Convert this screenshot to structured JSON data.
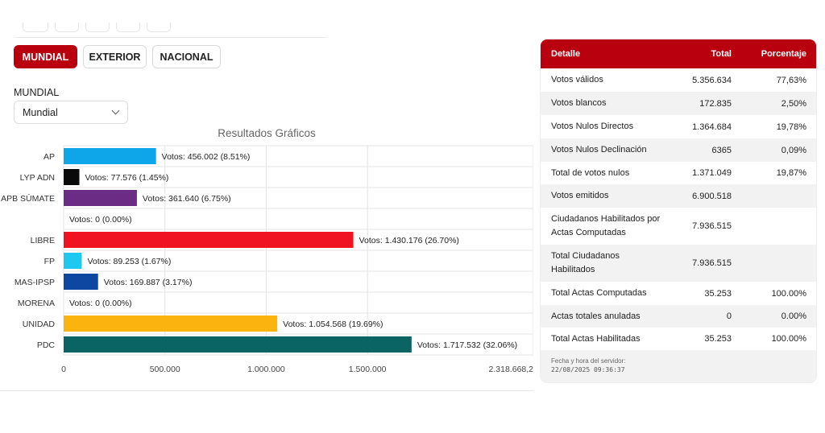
{
  "tabs": [
    {
      "label": "MUNDIAL",
      "active": true
    },
    {
      "label": "EXTERIOR",
      "active": false
    },
    {
      "label": "NACIONAL",
      "active": false
    }
  ],
  "filter": {
    "label": "MUNDIAL",
    "selected": "Mundial"
  },
  "chart_data": {
    "type": "bar",
    "orientation": "horizontal",
    "title": "Resultados Gráficos",
    "categories": [
      "AP",
      "LYP ADN",
      "APB SÚMATE",
      "",
      "LIBRE",
      "FP",
      "MAS-IPSP",
      "MORENA",
      "UNIDAD",
      "PDC"
    ],
    "values": [
      456002,
      77576,
      361640,
      0,
      1430176,
      89253,
      169887,
      0,
      1054568,
      1717532
    ],
    "labels": [
      "Votos: 456.002 (8.51%)",
      "Votos: 77.576 (1.45%)",
      "Votos: 361.640 (6.75%)",
      "Votos: 0 (0.00%)",
      "Votos: 1.430.176 (26.70%)",
      "Votos: 89.253 (1.67%)",
      "Votos: 169.887 (3.17%)",
      "Votos: 0 (0.00%)",
      "Votos: 1.054.568 (19.69%)",
      "Votos: 1.717.532 (32.06%)"
    ],
    "colors": [
      "#0ea5e9",
      "#0a0a0a",
      "#6b2c86",
      "#cccccc",
      "#f01422",
      "#1ec8ef",
      "#0d47a1",
      "#cccccc",
      "#fbb40f",
      "#0b6464"
    ],
    "xlim": [
      0,
      2318668.2
    ],
    "xticks": [
      0,
      500000,
      1000000,
      1500000,
      2318668.2
    ],
    "xtick_labels": [
      "0",
      "500.000",
      "1.000.000",
      "1.500.000",
      "2.318.668,2"
    ],
    "grid": true
  },
  "table": {
    "headers": [
      "Detalle",
      "Total",
      "Porcentaje"
    ],
    "rows": [
      {
        "detalle": "Votos válidos",
        "total": "5.356.634",
        "porcentaje": "77,63%"
      },
      {
        "detalle": "Votos blancos",
        "total": "172.835",
        "porcentaje": "2,50%"
      },
      {
        "detalle": "Votos Nulos Directos",
        "total": "1.364.684",
        "porcentaje": "19,78%"
      },
      {
        "detalle": "Votos Nulos Declinación",
        "total": "6365",
        "porcentaje": "0,09%"
      },
      {
        "detalle": "Total de votos nulos",
        "total": "1.371.049",
        "porcentaje": "19,87%"
      },
      {
        "detalle": "Votos emitidos",
        "total": "6.900.518",
        "porcentaje": ""
      },
      {
        "detalle": "Ciudadanos Habilitados por Actas Computadas",
        "total": "7.936.515",
        "porcentaje": ""
      },
      {
        "detalle": "Total Ciudadanos Habilitados",
        "total": "7.936.515",
        "porcentaje": ""
      },
      {
        "detalle": "Total Actas Computadas",
        "total": "35.253",
        "porcentaje": "100.00%"
      },
      {
        "detalle": "Actas totales anuladas",
        "total": "0",
        "porcentaje": "0.00%"
      },
      {
        "detalle": "Total Actas Habilitadas",
        "total": "35.253",
        "porcentaje": "100.00%"
      }
    ],
    "footer_label": "Fecha y hora del servidor:",
    "footer_time": "22/08/2025 09:36:37"
  }
}
